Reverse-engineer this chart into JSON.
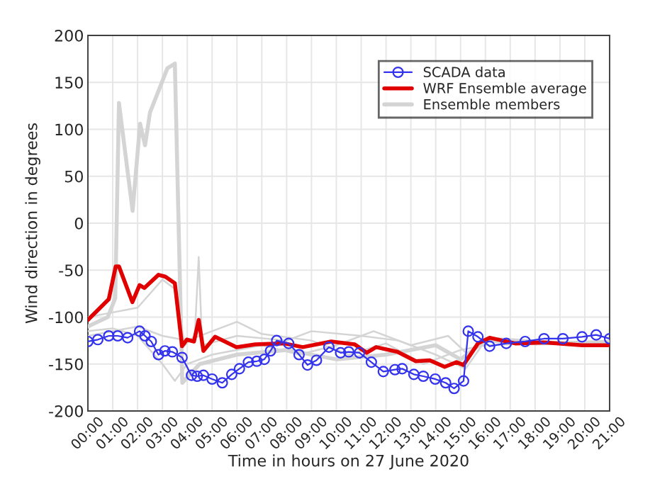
{
  "chart_data": {
    "type": "line",
    "xlabel": "Time in hours on 27 June 2020",
    "ylabel": "Wind direction in degrees",
    "xlim": [
      0,
      21
    ],
    "xticks": [
      {
        "value": 0,
        "label": "00:00"
      },
      {
        "value": 1,
        "label": "01:00"
      },
      {
        "value": 2,
        "label": "02:00"
      },
      {
        "value": 3,
        "label": "03:00"
      },
      {
        "value": 4,
        "label": "04:00"
      },
      {
        "value": 5,
        "label": "05:00"
      },
      {
        "value": 6,
        "label": "06:00"
      },
      {
        "value": 7,
        "label": "07:00"
      },
      {
        "value": 8,
        "label": "08:00"
      },
      {
        "value": 9,
        "label": "09:00"
      },
      {
        "value": 10,
        "label": "10:00"
      },
      {
        "value": 11,
        "label": "11:00"
      },
      {
        "value": 12,
        "label": "12:00"
      },
      {
        "value": 13,
        "label": "13:00"
      },
      {
        "value": 14,
        "label": "14:00"
      },
      {
        "value": 15,
        "label": "15:00"
      },
      {
        "value": 16,
        "label": "16:00"
      },
      {
        "value": 17,
        "label": "17:00"
      },
      {
        "value": 18,
        "label": "18:00"
      },
      {
        "value": 19,
        "label": "19:00"
      },
      {
        "value": 20,
        "label": "20:00"
      },
      {
        "value": 21,
        "label": "21:00"
      }
    ],
    "ylim": [
      -200,
      200
    ],
    "yticks": [
      -200,
      -150,
      -100,
      -50,
      0,
      50,
      100,
      150,
      200
    ],
    "grid": true,
    "legend": "top right",
    "series": [
      {
        "name": "SCADA data",
        "color": "#3333ee",
        "marker": "circle",
        "x": [
          0,
          0.4,
          0.84,
          1.2,
          1.6,
          2.08,
          2.3,
          2.55,
          2.84,
          3.1,
          3.4,
          3.79,
          4.17,
          4.4,
          4.65,
          5.0,
          5.41,
          5.79,
          6.1,
          6.46,
          6.8,
          7.1,
          7.35,
          7.6,
          8.08,
          8.5,
          8.84,
          9.2,
          9.7,
          10.17,
          10.5,
          10.93,
          11.41,
          11.89,
          12.36,
          12.65,
          13.12,
          13.5,
          13.98,
          14.4,
          14.74,
          15.12,
          15.31,
          15.7,
          16.17,
          16.84,
          17.6,
          18.36,
          19.12,
          19.89,
          20.46,
          21
        ],
        "values": [
          -126,
          -124,
          -120,
          -120,
          -122,
          -115,
          -120,
          -126,
          -140,
          -136,
          -137,
          -143,
          -162,
          -163,
          -162,
          -166,
          -170,
          -161,
          -155,
          -148,
          -147,
          -145,
          -136,
          -125,
          -128,
          -140,
          -151,
          -146,
          -132,
          -138,
          -137,
          -138,
          -148,
          -158,
          -156,
          -155,
          -161,
          -163,
          -166,
          -170,
          -176,
          -168,
          -115,
          -121,
          -131,
          -128,
          -126,
          -123,
          -123,
          -121,
          -119,
          -123
        ]
      },
      {
        "name": "WRF Ensemble average",
        "color": "#e00000",
        "marker": "none",
        "x": [
          0,
          0.46,
          0.84,
          1.12,
          1.25,
          1.79,
          2.08,
          2.27,
          2.84,
          3.12,
          3.5,
          3.79,
          3.98,
          4.27,
          4.46,
          4.65,
          5.12,
          5.98,
          6.74,
          7.89,
          8.65,
          9.79,
          10.74,
          11.22,
          11.6,
          12.46,
          13.2,
          13.76,
          14.36,
          14.84,
          15.12,
          15.7,
          16.17,
          17.2,
          18.36,
          19.9,
          20.93
        ],
        "values": [
          -103,
          -91,
          -81,
          -46,
          -46,
          -84,
          -66,
          -69,
          -55,
          -57,
          -64,
          -131,
          -124,
          -126,
          -103,
          -136,
          -121,
          -132,
          -129,
          -128,
          -132,
          -126,
          -129,
          -138,
          -132,
          -137,
          -147,
          -146,
          -153,
          -148,
          -151,
          -128,
          -122,
          -128,
          -127,
          -130,
          -130
        ]
      },
      {
        "name": "Ensemble members",
        "color": "#d4d4d4",
        "marker": "none",
        "x": [
          0,
          0.8,
          1.1,
          1.25,
          1.8,
          2.1,
          2.3,
          2.5,
          3.2,
          3.5,
          3.8,
          4.5,
          6,
          8,
          10,
          12,
          14,
          15,
          16,
          18,
          21
        ],
        "values": [
          -110,
          -100,
          -80,
          128,
          13,
          106,
          83,
          118,
          165,
          170,
          -170,
          -150,
          -140,
          -135,
          -145,
          -140,
          -130,
          -145,
          -125,
          -128,
          -127
        ]
      },
      {
        "color": "#d4d4d4",
        "marker": "none",
        "x": [
          0,
          1,
          2,
          3,
          3.5,
          3.9,
          4.3,
          4.46,
          4.6,
          6,
          8,
          9,
          11,
          12.5,
          14,
          15.2,
          16,
          21
        ],
        "values": [
          -100,
          -95,
          -90,
          -60,
          -70,
          -130,
          -120,
          -36,
          -130,
          -120,
          -125,
          -115,
          -120,
          -125,
          -140,
          -155,
          -125,
          -128
        ]
      },
      {
        "color": "#d4d4d4",
        "marker": "none",
        "x": [
          0,
          1,
          2,
          3,
          3.5,
          4,
          5,
          7,
          8.5,
          10,
          11.5,
          13,
          14.5,
          15.3,
          16.2,
          21
        ],
        "values": [
          -115,
          -112,
          -120,
          -150,
          -168,
          -150,
          -140,
          -130,
          -140,
          -130,
          -115,
          -130,
          -120,
          -140,
          -122,
          -130
        ]
      },
      {
        "color": "#d4d4d4",
        "marker": "none",
        "x": [
          0,
          2,
          3,
          4,
          5,
          6,
          7,
          9,
          10.5,
          12,
          13.5,
          15,
          16,
          21
        ],
        "values": [
          -120,
          -110,
          -120,
          -125,
          -115,
          -105,
          -118,
          -125,
          -140,
          -128,
          -150,
          -135,
          -130,
          -125
        ]
      }
    ]
  }
}
